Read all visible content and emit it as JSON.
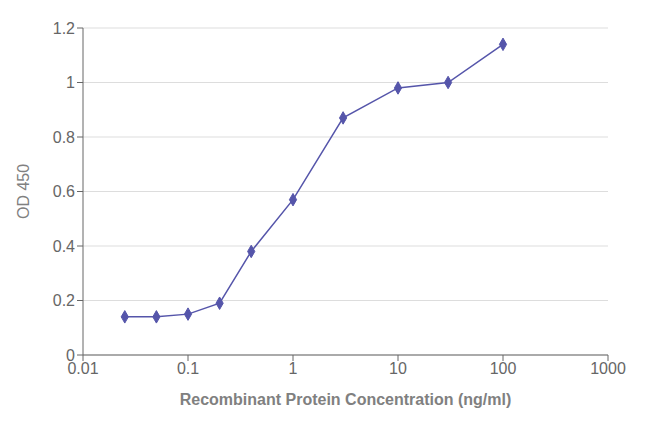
{
  "chart_data": {
    "type": "line",
    "xlabel": "Recombinant Protein Concentration (ng/ml)",
    "ylabel": "OD 450",
    "x": [
      0.025,
      0.05,
      0.1,
      0.2,
      0.4,
      1.0,
      3.0,
      10.0,
      30.0,
      100.0
    ],
    "values": [
      0.14,
      0.14,
      0.15,
      0.19,
      0.38,
      0.57,
      0.87,
      0.98,
      1.0,
      1.14
    ],
    "log": "x",
    "xlim": [
      0.01,
      1000
    ],
    "xticks": [
      0.01,
      0.1,
      1,
      10,
      100,
      1000
    ],
    "ylim": [
      0,
      1.2
    ],
    "yticks": [
      0,
      0.2,
      0.4,
      0.6,
      0.8,
      1,
      1.2
    ],
    "grid": true,
    "color": "#5555aa",
    "marker": "diamond"
  }
}
